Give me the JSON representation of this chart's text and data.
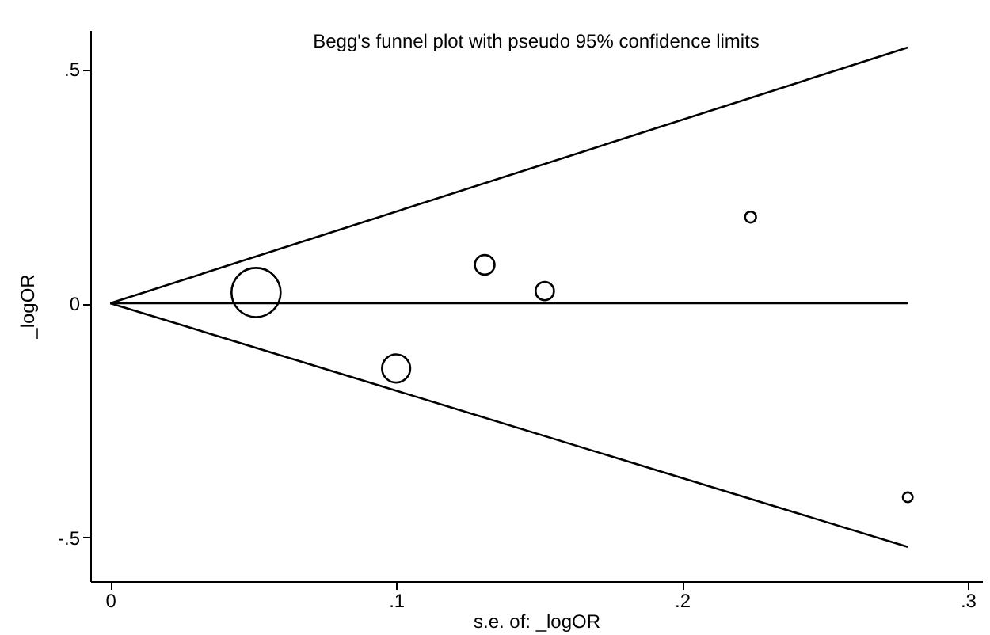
{
  "chart_data": {
    "type": "bubble",
    "title": "Begg's funnel plot with pseudo 95% confidence limits",
    "xlabel": "s.e. of: _logOR",
    "ylabel": "_logOR",
    "series": [
      {
        "type": "line",
        "color": "#000000",
        "x": [
          0,
          0.279
        ],
        "values": [
          0,
          0.546
        ]
      },
      {
        "type": "line",
        "color": "#000000",
        "x": [
          0,
          0.279
        ],
        "values": [
          0,
          0
        ]
      },
      {
        "type": "line",
        "color": "#000000",
        "x": [
          0,
          0.279
        ],
        "values": [
          0,
          -0.52
        ]
      },
      {
        "color": "#000000",
        "x": [
          0.051,
          0.1,
          0.131,
          0.152,
          0.224,
          0.279
        ],
        "values": [
          0.023,
          -0.139,
          0.082,
          0.026,
          0.184,
          -0.414
        ],
        "sizes": [
          1,
          0.33,
          0.16,
          0.14,
          0.05,
          0.04
        ]
      }
    ],
    "xlim": [
      -0.007,
      0.305
    ],
    "xticks": [
      0,
      {
        "value": 0.1,
        "label": ".1"
      },
      {
        "value": 0.2,
        "label": ".2"
      },
      {
        "value": 0.3,
        "label": ".3"
      }
    ],
    "ylim": [
      -0.593,
      0.583
    ],
    "yticks": [
      {
        "value": -0.5,
        "label": "-.5"
      },
      0,
      {
        "value": 0.5,
        "label": ".5"
      }
    ],
    "grid": false,
    "legend": false
  }
}
